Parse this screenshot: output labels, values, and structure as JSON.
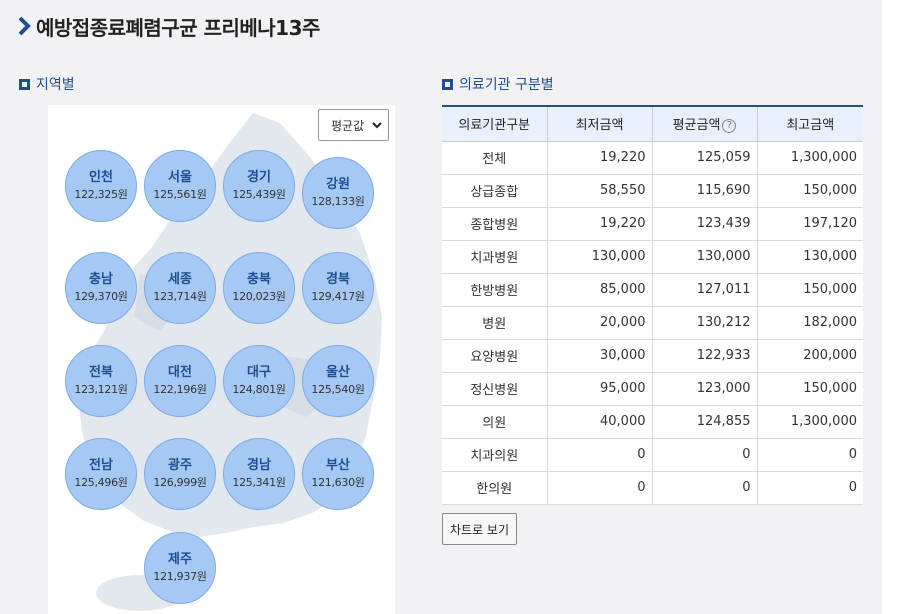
{
  "page": {
    "title": "예방접종료폐렴구균 프리베나13주"
  },
  "region_section": {
    "title": "지역별",
    "select_value": "평균값",
    "regions": [
      {
        "name": "인천",
        "amount": "122,325원"
      },
      {
        "name": "서울",
        "amount": "125,561원"
      },
      {
        "name": "경기",
        "amount": "125,439원"
      },
      {
        "name": "강원",
        "amount": "128,133원"
      },
      {
        "name": "충남",
        "amount": "129,370원"
      },
      {
        "name": "세종",
        "amount": "123,714원"
      },
      {
        "name": "충북",
        "amount": "120,023원"
      },
      {
        "name": "경북",
        "amount": "129,417원"
      },
      {
        "name": "전북",
        "amount": "123,121원"
      },
      {
        "name": "대전",
        "amount": "122,196원"
      },
      {
        "name": "대구",
        "amount": "124,801원"
      },
      {
        "name": "울산",
        "amount": "125,540원"
      },
      {
        "name": "전남",
        "amount": "125,496원"
      },
      {
        "name": "광주",
        "amount": "126,999원"
      },
      {
        "name": "경남",
        "amount": "125,341원"
      },
      {
        "name": "부산",
        "amount": "121,630원"
      },
      {
        "name": "제주",
        "amount": "121,937원"
      }
    ]
  },
  "institution_section": {
    "title": "의료기관 구분별",
    "headers": [
      "의료기관구분",
      "최저금액",
      "평균금액",
      "최고금액"
    ],
    "help_icon": "?",
    "rows": [
      [
        "전체",
        "19,220",
        "125,059",
        "1,300,000"
      ],
      [
        "상급종합",
        "58,550",
        "115,690",
        "150,000"
      ],
      [
        "종합병원",
        "19,220",
        "123,439",
        "197,120"
      ],
      [
        "치과병원",
        "130,000",
        "130,000",
        "130,000"
      ],
      [
        "한방병원",
        "85,000",
        "127,011",
        "150,000"
      ],
      [
        "병원",
        "20,000",
        "130,212",
        "182,000"
      ],
      [
        "요양병원",
        "30,000",
        "122,933",
        "200,000"
      ],
      [
        "정신병원",
        "95,000",
        "123,000",
        "150,000"
      ],
      [
        "의원",
        "40,000",
        "124,855",
        "1,300,000"
      ],
      [
        "치과의원",
        "0",
        "0",
        "0"
      ],
      [
        "한의원",
        "0",
        "0",
        "0"
      ]
    ],
    "chart_button": "차트로 보기"
  },
  "colors": {
    "accent": "#1d4f91",
    "bubble": "#a5c8f4",
    "header_bg": "#e8f1fb",
    "panel_bg": "#f2f2f4"
  }
}
